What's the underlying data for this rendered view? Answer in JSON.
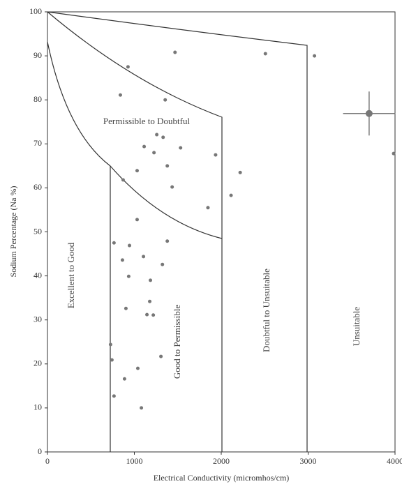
{
  "chart_data": {
    "type": "scatter",
    "x_label": "Electrical Conductivity (micromhos/cm)",
    "y_label": "Sodium Percentage (Na %)",
    "annotations": [
      "Permissible to Doubtful",
      "Excellent to Good",
      "Good to Permissible",
      "Doubtful to Unsuitable",
      "Unsuitable"
    ],
    "xlim": [
      0,
      4000
    ],
    "xticks": [
      0,
      1000,
      2000,
      3000,
      4000
    ],
    "ylim": [
      0,
      100
    ],
    "yticks": [
      0,
      10,
      20,
      30,
      40,
      50,
      60,
      70,
      80,
      90,
      100
    ],
    "color": "#777",
    "x": [
      927,
      1468,
      2508,
      3073,
      839,
      1355,
      1258,
      1331,
      1113,
      1226,
      1532,
      1935,
      3984,
      1379,
      1032,
      2218,
      871,
      1435,
      2113,
      1847,
      1032,
      1379,
      766,
      944,
      863,
      1105,
      1323,
      935,
      1185,
      1177,
      903,
      1145,
      1218,
      726,
      742,
      1040,
      1306,
      887,
      766,
      1081
    ],
    "values": [
      87.5,
      90.8,
      90.5,
      90,
      81.1,
      80,
      72.1,
      71.5,
      69.4,
      68,
      69.1,
      67.5,
      67.8,
      65,
      63.9,
      63.5,
      61.8,
      60.2,
      58.3,
      55.5,
      52.8,
      47.9,
      47.5,
      46.9,
      43.6,
      44.4,
      42.6,
      39.9,
      39,
      34.2,
      32.6,
      31.2,
      31.1,
      24.4,
      20.9,
      19,
      21.7,
      16.6,
      12.7,
      10
    ],
    "error_point": {
      "x": 3702,
      "y": 76.9,
      "xerr": 300,
      "yerr": 5
    }
  }
}
